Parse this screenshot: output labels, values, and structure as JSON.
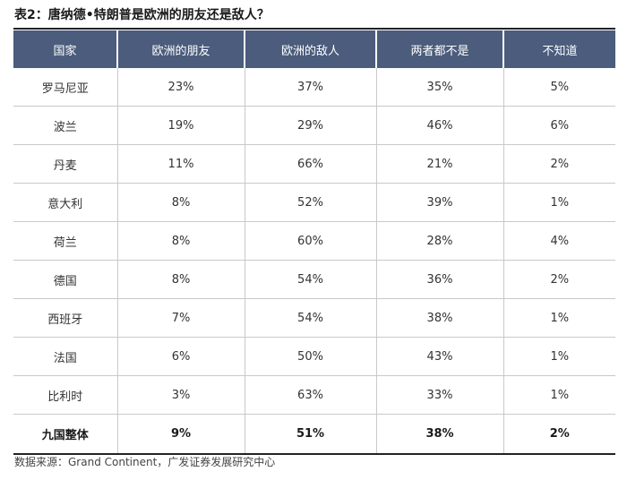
{
  "title": "表2：唐纳德•特朗普是欧洲的朋友还是敌人？",
  "headers": [
    "国家",
    "欧洲的朋友",
    "欧洲的敌人",
    "两者都不是",
    "不知道"
  ],
  "rows": [
    [
      "罗马尼亚",
      "23%",
      "37%",
      "35%",
      "5%"
    ],
    [
      "波兰",
      "19%",
      "29%",
      "46%",
      "6%"
    ],
    [
      "丹麦",
      "11%",
      "66%",
      "21%",
      "2%"
    ],
    [
      "意大利",
      "8%",
      "52%",
      "39%",
      "1%"
    ],
    [
      "荷兰",
      "8%",
      "60%",
      "28%",
      "4%"
    ],
    [
      "德国",
      "8%",
      "54%",
      "36%",
      "2%"
    ],
    [
      "西班牙",
      "7%",
      "54%",
      "38%",
      "1%"
    ],
    [
      "法国",
      "6%",
      "50%",
      "43%",
      "1%"
    ],
    [
      "比利时",
      "3%",
      "63%",
      "33%",
      "1%"
    ]
  ],
  "total": [
    "九国整体",
    "9%",
    "51%",
    "38%",
    "2%"
  ],
  "source": "数据来源：Grand Continent，广发证券发展研究中心",
  "colors": {
    "header_bg": "#4b5c7c",
    "header_text": "#ffffff",
    "grid": "#c9c9c9"
  }
}
